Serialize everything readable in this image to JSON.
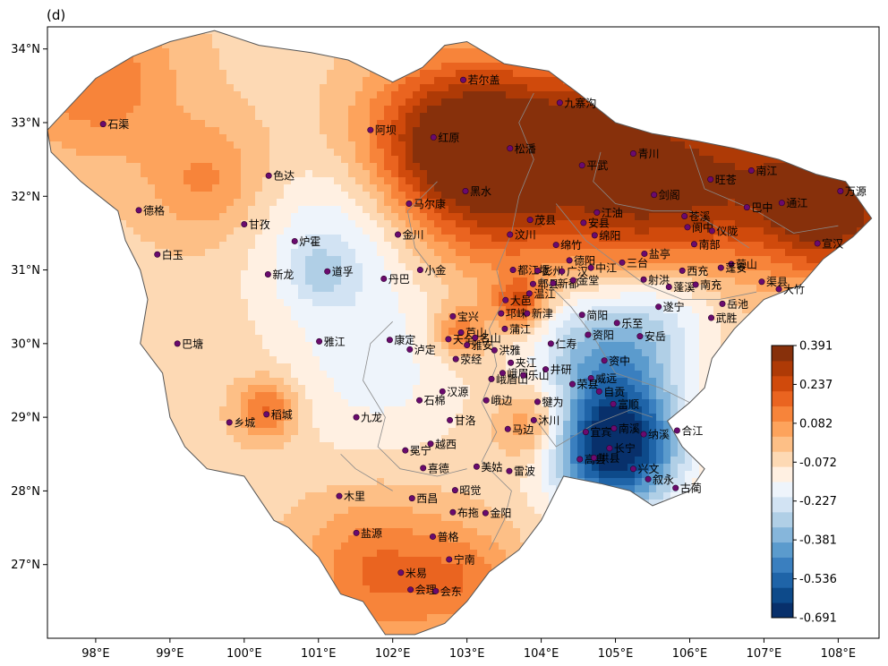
{
  "panel_label": "(d)",
  "axes": {
    "lon_range": [
      97.35,
      108.55
    ],
    "lat_range": [
      26.0,
      34.3
    ],
    "x_ticks": [
      {
        "value": 98,
        "label": "98°E"
      },
      {
        "value": 99,
        "label": "99°E"
      },
      {
        "value": 100,
        "label": "100°E"
      },
      {
        "value": 101,
        "label": "101°E"
      },
      {
        "value": 102,
        "label": "102°E"
      },
      {
        "value": 103,
        "label": "103°E"
      },
      {
        "value": 104,
        "label": "104°E"
      },
      {
        "value": 105,
        "label": "105°E"
      },
      {
        "value": 106,
        "label": "106°E"
      },
      {
        "value": 107,
        "label": "107°E"
      },
      {
        "value": 108,
        "label": "108°E"
      }
    ],
    "y_ticks": [
      {
        "value": 27,
        "label": "27°N"
      },
      {
        "value": 28,
        "label": "28°N"
      },
      {
        "value": 29,
        "label": "29°N"
      },
      {
        "value": 30,
        "label": "30°N"
      },
      {
        "value": 31,
        "label": "31°N"
      },
      {
        "value": 32,
        "label": "32°N"
      },
      {
        "value": 33,
        "label": "33°N"
      },
      {
        "value": 34,
        "label": "34°N"
      }
    ]
  },
  "colorbar": {
    "min": -0.691,
    "max": 0.391,
    "tick_labels": [
      "0.391",
      "0.237",
      "0.082",
      "-0.072",
      "-0.227",
      "-0.381",
      "-0.536",
      "-0.691"
    ],
    "colors": [
      "#08306b",
      "#0d4a8a",
      "#1f64a8",
      "#3a7fbf",
      "#5b9bcd",
      "#86b6db",
      "#b0cfe6",
      "#d2e3f3",
      "#eef4fb",
      "#fff0e2",
      "#fdd9b4",
      "#fdbf86",
      "#fda35c",
      "#f7843a",
      "#ea6420",
      "#d04a0c",
      "#ae3a06",
      "#87300b"
    ]
  },
  "field_base_value": -0.05,
  "field_anomalies": [
    {
      "lon": 103.5,
      "lat": 32.5,
      "value": 0.44,
      "radius": 1.3
    },
    {
      "lon": 104.9,
      "lat": 32.8,
      "value": 0.2,
      "radius": 0.9
    },
    {
      "lon": 106.3,
      "lat": 32.25,
      "value": 0.3,
      "radius": 1.2
    },
    {
      "lon": 107.9,
      "lat": 31.9,
      "value": 0.44,
      "radius": 0.9
    },
    {
      "lon": 105.2,
      "lat": 31.6,
      "value": 0.1,
      "radius": 0.9
    },
    {
      "lon": 102.5,
      "lat": 32.8,
      "value": 0.16,
      "radius": 1.0
    },
    {
      "lon": 98.0,
      "lat": 33.6,
      "value": 0.14,
      "radius": 1.1
    },
    {
      "lon": 99.5,
      "lat": 32.2,
      "value": 0.1,
      "radius": 0.8
    },
    {
      "lon": 101.2,
      "lat": 31.3,
      "value": -0.22,
      "radius": 1.1
    },
    {
      "lon": 101.0,
      "lat": 30.95,
      "value": -0.16,
      "radius": 0.35
    },
    {
      "lon": 101.8,
      "lat": 29.6,
      "value": -0.17,
      "radius": 1.2
    },
    {
      "lon": 100.3,
      "lat": 29.1,
      "value": 0.18,
      "radius": 0.4
    },
    {
      "lon": 103.7,
      "lat": 30.55,
      "value": 0.22,
      "radius": 0.35
    },
    {
      "lon": 102.9,
      "lat": 30.15,
      "value": 0.16,
      "radius": 0.35
    },
    {
      "lon": 103.9,
      "lat": 28.9,
      "value": 0.15,
      "radius": 0.5
    },
    {
      "lon": 101.8,
      "lat": 26.9,
      "value": 0.16,
      "radius": 1.0
    },
    {
      "lon": 103.0,
      "lat": 26.8,
      "value": 0.1,
      "radius": 0.7
    },
    {
      "lon": 105.0,
      "lat": 28.6,
      "value": -0.72,
      "radius": 0.85
    },
    {
      "lon": 105.0,
      "lat": 29.9,
      "value": -0.35,
      "radius": 0.9
    },
    {
      "lon": 105.8,
      "lat": 30.5,
      "value": -0.15,
      "radius": 0.7
    },
    {
      "lon": 104.2,
      "lat": 30.0,
      "value": -0.1,
      "radius": 0.7
    }
  ],
  "boundary": [
    [
      97.35,
      32.9
    ],
    [
      98.0,
      33.6
    ],
    [
      98.5,
      33.9
    ],
    [
      99.0,
      34.1
    ],
    [
      99.6,
      34.25
    ],
    [
      100.2,
      34.05
    ],
    [
      100.9,
      33.95
    ],
    [
      101.4,
      33.85
    ],
    [
      102.0,
      33.55
    ],
    [
      102.4,
      33.75
    ],
    [
      102.7,
      34.05
    ],
    [
      103.0,
      34.1
    ],
    [
      103.5,
      33.8
    ],
    [
      104.1,
      33.7
    ],
    [
      104.5,
      33.4
    ],
    [
      105.0,
      33.0
    ],
    [
      105.5,
      32.85
    ],
    [
      106.1,
      32.75
    ],
    [
      106.6,
      32.65
    ],
    [
      107.2,
      32.5
    ],
    [
      107.7,
      32.3
    ],
    [
      108.1,
      32.2
    ],
    [
      108.45,
      31.7
    ],
    [
      108.2,
      31.45
    ],
    [
      107.8,
      31.15
    ],
    [
      107.5,
      30.8
    ],
    [
      107.0,
      30.6
    ],
    [
      106.6,
      30.2
    ],
    [
      106.3,
      29.8
    ],
    [
      106.2,
      29.4
    ],
    [
      106.0,
      29.2
    ],
    [
      105.7,
      28.95
    ],
    [
      105.9,
      28.6
    ],
    [
      106.2,
      28.3
    ],
    [
      106.0,
      28.0
    ],
    [
      105.5,
      27.8
    ],
    [
      105.2,
      28.0
    ],
    [
      104.8,
      28.1
    ],
    [
      104.3,
      28.2
    ],
    [
      104.0,
      27.6
    ],
    [
      103.7,
      27.2
    ],
    [
      103.3,
      26.9
    ],
    [
      103.0,
      26.5
    ],
    [
      102.7,
      26.2
    ],
    [
      102.3,
      26.05
    ],
    [
      101.9,
      26.05
    ],
    [
      101.6,
      26.5
    ],
    [
      101.3,
      26.6
    ],
    [
      101.0,
      27.1
    ],
    [
      100.6,
      27.5
    ],
    [
      100.4,
      27.6
    ],
    [
      100.2,
      27.9
    ],
    [
      100.0,
      28.2
    ],
    [
      99.5,
      28.3
    ],
    [
      99.2,
      28.6
    ],
    [
      99.0,
      29.0
    ],
    [
      98.9,
      29.6
    ],
    [
      98.6,
      30.0
    ],
    [
      98.7,
      30.6
    ],
    [
      98.6,
      31.0
    ],
    [
      98.4,
      31.4
    ],
    [
      98.3,
      31.8
    ],
    [
      97.8,
      32.2
    ],
    [
      97.4,
      32.6
    ]
  ],
  "inner_borders": [
    [
      [
        103.9,
        33.4
      ],
      [
        103.7,
        33.0
      ],
      [
        103.9,
        32.5
      ],
      [
        103.7,
        32.0
      ],
      [
        103.6,
        31.5
      ],
      [
        103.4,
        31.0
      ],
      [
        103.5,
        30.6
      ],
      [
        103.3,
        30.2
      ],
      [
        103.4,
        29.7
      ],
      [
        103.2,
        29.2
      ],
      [
        103.4,
        28.8
      ],
      [
        103.2,
        28.4
      ],
      [
        103.6,
        28.0
      ],
      [
        103.5,
        27.6
      ],
      [
        103.3,
        27.2
      ]
    ],
    [
      [
        104.2,
        31.9
      ],
      [
        104.6,
        31.4
      ],
      [
        105.0,
        31.1
      ],
      [
        105.4,
        30.8
      ],
      [
        105.9,
        30.6
      ],
      [
        106.4,
        30.6
      ],
      [
        106.9,
        30.7
      ]
    ],
    [
      [
        104.0,
        30.9
      ],
      [
        104.4,
        30.5
      ],
      [
        104.7,
        30.1
      ],
      [
        105.0,
        29.6
      ],
      [
        105.6,
        29.4
      ],
      [
        106.0,
        29.2
      ]
    ],
    [
      [
        104.8,
        32.6
      ],
      [
        104.7,
        32.2
      ],
      [
        105.0,
        31.9
      ],
      [
        105.5,
        31.8
      ],
      [
        106.0,
        31.8
      ],
      [
        106.5,
        31.5
      ],
      [
        106.8,
        31.3
      ]
    ],
    [
      [
        106.0,
        32.7
      ],
      [
        106.2,
        32.1
      ],
      [
        106.9,
        31.8
      ],
      [
        107.4,
        31.5
      ],
      [
        108.0,
        31.6
      ]
    ],
    [
      [
        102.0,
        30.3
      ],
      [
        101.7,
        30.0
      ],
      [
        101.6,
        29.5
      ],
      [
        101.9,
        29.0
      ],
      [
        101.8,
        28.6
      ],
      [
        102.1,
        28.3
      ],
      [
        102.6,
        28.2
      ],
      [
        103.0,
        28.3
      ]
    ],
    [
      [
        101.3,
        28.5
      ],
      [
        101.5,
        28.3
      ],
      [
        102.0,
        28.0
      ]
    ],
    [
      [
        102.6,
        30.9
      ],
      [
        102.3,
        31.3
      ],
      [
        102.2,
        31.8
      ],
      [
        102.6,
        32.2
      ]
    ],
    [
      [
        103.9,
        29.0
      ],
      [
        104.2,
        28.6
      ],
      [
        104.7,
        28.9
      ],
      [
        105.2,
        29.1
      ],
      [
        105.5,
        29.0
      ]
    ]
  ],
  "stations": [
    {
      "name": "若尔盖",
      "lon": 102.95,
      "lat": 33.58
    },
    {
      "name": "九寨沟",
      "lon": 104.25,
      "lat": 33.27
    },
    {
      "name": "石渠",
      "lon": 98.1,
      "lat": 32.98
    },
    {
      "name": "阿坝",
      "lon": 101.7,
      "lat": 32.9
    },
    {
      "name": "红原",
      "lon": 102.55,
      "lat": 32.8
    },
    {
      "name": "松潘",
      "lon": 103.58,
      "lat": 32.65
    },
    {
      "name": "平武",
      "lon": 104.55,
      "lat": 32.42
    },
    {
      "name": "青川",
      "lon": 105.24,
      "lat": 32.58
    },
    {
      "name": "色达",
      "lon": 100.33,
      "lat": 32.28
    },
    {
      "name": "黑水",
      "lon": 102.98,
      "lat": 32.07
    },
    {
      "name": "旺苍",
      "lon": 106.28,
      "lat": 32.23
    },
    {
      "name": "南江",
      "lon": 106.83,
      "lat": 32.35
    },
    {
      "name": "万源",
      "lon": 108.03,
      "lat": 32.07
    },
    {
      "name": "马尔康",
      "lon": 102.22,
      "lat": 31.9
    },
    {
      "name": "剑阁",
      "lon": 105.52,
      "lat": 32.02
    },
    {
      "name": "江油",
      "lon": 104.75,
      "lat": 31.78
    },
    {
      "name": "德格",
      "lon": 98.58,
      "lat": 31.81
    },
    {
      "name": "茂县",
      "lon": 103.85,
      "lat": 31.68
    },
    {
      "name": "安县",
      "lon": 104.57,
      "lat": 31.64
    },
    {
      "name": "苍溪",
      "lon": 105.93,
      "lat": 31.73
    },
    {
      "name": "巴中",
      "lon": 106.77,
      "lat": 31.85
    },
    {
      "name": "通江",
      "lon": 107.24,
      "lat": 31.91
    },
    {
      "name": "阆中",
      "lon": 105.97,
      "lat": 31.58
    },
    {
      "name": "仪陇",
      "lon": 106.3,
      "lat": 31.53
    },
    {
      "name": "甘孜",
      "lon": 100.0,
      "lat": 31.62
    },
    {
      "name": "汶川",
      "lon": 103.58,
      "lat": 31.48
    },
    {
      "name": "绵竹",
      "lon": 104.2,
      "lat": 31.34
    },
    {
      "name": "绵阳",
      "lon": 104.72,
      "lat": 31.47
    },
    {
      "name": "金川",
      "lon": 102.07,
      "lat": 31.48
    },
    {
      "name": "炉霍",
      "lon": 100.68,
      "lat": 31.39
    },
    {
      "name": "宣汉",
      "lon": 107.72,
      "lat": 31.36
    },
    {
      "name": "盐亭",
      "lon": 105.39,
      "lat": 31.22
    },
    {
      "name": "南部",
      "lon": 106.06,
      "lat": 31.35
    },
    {
      "name": "营山",
      "lon": 106.56,
      "lat": 31.08
    },
    {
      "name": "三台",
      "lon": 105.09,
      "lat": 31.1
    },
    {
      "name": "德阳",
      "lon": 104.38,
      "lat": 31.13
    },
    {
      "name": "白玉",
      "lon": 98.83,
      "lat": 31.21
    },
    {
      "name": "都江堰",
      "lon": 103.62,
      "lat": 31.0
    },
    {
      "name": "彭州",
      "lon": 103.95,
      "lat": 30.99
    },
    {
      "name": "广汉",
      "lon": 104.28,
      "lat": 30.98
    },
    {
      "name": "中江",
      "lon": 104.67,
      "lat": 31.03
    },
    {
      "name": "西充",
      "lon": 105.9,
      "lat": 30.99
    },
    {
      "name": "蓬安",
      "lon": 106.42,
      "lat": 31.03
    },
    {
      "name": "渠县",
      "lon": 106.97,
      "lat": 30.84
    },
    {
      "name": "小金",
      "lon": 102.37,
      "lat": 31.0
    },
    {
      "name": "道孚",
      "lon": 101.12,
      "lat": 30.98
    },
    {
      "name": "新龙",
      "lon": 100.32,
      "lat": 30.94
    },
    {
      "name": "丹巴",
      "lon": 101.88,
      "lat": 30.88
    },
    {
      "name": "郫县",
      "lon": 103.89,
      "lat": 30.81
    },
    {
      "name": "射洪",
      "lon": 105.38,
      "lat": 30.87
    },
    {
      "name": "蓬溪",
      "lon": 105.72,
      "lat": 30.77
    },
    {
      "name": "南充",
      "lon": 106.08,
      "lat": 30.8
    },
    {
      "name": "大竹",
      "lon": 107.2,
      "lat": 30.74
    },
    {
      "name": "大邑",
      "lon": 103.52,
      "lat": 30.59
    },
    {
      "name": "温江",
      "lon": 103.84,
      "lat": 30.68
    },
    {
      "name": "新都",
      "lon": 104.16,
      "lat": 30.82
    },
    {
      "name": "金堂",
      "lon": 104.43,
      "lat": 30.86
    },
    {
      "name": "岳池",
      "lon": 106.44,
      "lat": 30.54
    },
    {
      "name": "宝兴",
      "lon": 102.81,
      "lat": 30.37
    },
    {
      "name": "邛崃",
      "lon": 103.46,
      "lat": 30.41
    },
    {
      "name": "遂宁",
      "lon": 105.58,
      "lat": 30.5
    },
    {
      "name": "武胜",
      "lon": 106.29,
      "lat": 30.35
    },
    {
      "name": "芦山",
      "lon": 102.92,
      "lat": 30.15
    },
    {
      "name": "新津",
      "lon": 103.81,
      "lat": 30.41
    },
    {
      "name": "简阳",
      "lon": 104.55,
      "lat": 30.39
    },
    {
      "name": "乐至",
      "lon": 105.02,
      "lat": 30.28
    },
    {
      "name": "天全",
      "lon": 102.75,
      "lat": 30.06
    },
    {
      "name": "名山",
      "lon": 103.11,
      "lat": 30.08
    },
    {
      "name": "蒲江",
      "lon": 103.51,
      "lat": 30.2
    },
    {
      "name": "安岳",
      "lon": 105.33,
      "lat": 30.1
    },
    {
      "name": "康定",
      "lon": 101.96,
      "lat": 30.05
    },
    {
      "name": "雅江",
      "lon": 101.01,
      "lat": 30.03
    },
    {
      "name": "巴塘",
      "lon": 99.1,
      "lat": 30.0
    },
    {
      "name": "仁寿",
      "lon": 104.13,
      "lat": 30.0
    },
    {
      "name": "资阳",
      "lon": 104.63,
      "lat": 30.12
    },
    {
      "name": "雅安",
      "lon": 103.0,
      "lat": 29.98
    },
    {
      "name": "洪雅",
      "lon": 103.37,
      "lat": 29.91
    },
    {
      "name": "泸定",
      "lon": 102.23,
      "lat": 29.92
    },
    {
      "name": "荥经",
      "lon": 102.85,
      "lat": 29.79
    },
    {
      "name": "夹江",
      "lon": 103.59,
      "lat": 29.74
    },
    {
      "name": "资中",
      "lon": 104.85,
      "lat": 29.77
    },
    {
      "name": "峨眉山",
      "lon": 103.33,
      "lat": 29.52
    },
    {
      "name": "峨眉",
      "lon": 103.48,
      "lat": 29.6
    },
    {
      "name": "井研",
      "lon": 104.06,
      "lat": 29.65
    },
    {
      "name": "威远",
      "lon": 104.67,
      "lat": 29.53
    },
    {
      "name": "汉源",
      "lon": 102.67,
      "lat": 29.35
    },
    {
      "name": "乐山",
      "lon": 103.76,
      "lat": 29.57
    },
    {
      "name": "荣县",
      "lon": 104.42,
      "lat": 29.45
    },
    {
      "name": "自贡",
      "lon": 104.78,
      "lat": 29.35
    },
    {
      "name": "石棉",
      "lon": 102.36,
      "lat": 29.23
    },
    {
      "name": "峨边",
      "lon": 103.26,
      "lat": 29.23
    },
    {
      "name": "犍为",
      "lon": 103.95,
      "lat": 29.21
    },
    {
      "name": "富顺",
      "lon": 104.97,
      "lat": 29.18
    },
    {
      "name": "稻城",
      "lon": 100.3,
      "lat": 29.04
    },
    {
      "name": "乡城",
      "lon": 99.8,
      "lat": 28.93
    },
    {
      "name": "九龙",
      "lon": 101.51,
      "lat": 29.0
    },
    {
      "name": "甘洛",
      "lon": 102.77,
      "lat": 28.96
    },
    {
      "name": "沐川",
      "lon": 103.9,
      "lat": 28.96
    },
    {
      "name": "马边",
      "lon": 103.55,
      "lat": 28.84
    },
    {
      "name": "宜宾",
      "lon": 104.6,
      "lat": 28.8
    },
    {
      "name": "南溪",
      "lon": 104.98,
      "lat": 28.85
    },
    {
      "name": "纳溪",
      "lon": 105.38,
      "lat": 28.77
    },
    {
      "name": "合江",
      "lon": 105.83,
      "lat": 28.82
    },
    {
      "name": "冕宁",
      "lon": 102.17,
      "lat": 28.55
    },
    {
      "name": "越西",
      "lon": 102.51,
      "lat": 28.64
    },
    {
      "name": "长宁",
      "lon": 104.92,
      "lat": 28.58
    },
    {
      "name": "高县",
      "lon": 104.52,
      "lat": 28.43
    },
    {
      "name": "兴文",
      "lon": 105.24,
      "lat": 28.3
    },
    {
      "name": "美姑",
      "lon": 103.13,
      "lat": 28.33
    },
    {
      "name": "喜德",
      "lon": 102.41,
      "lat": 28.31
    },
    {
      "name": "雷波",
      "lon": 103.57,
      "lat": 28.27
    },
    {
      "name": "珙县",
      "lon": 104.71,
      "lat": 28.45
    },
    {
      "name": "叙永",
      "lon": 105.44,
      "lat": 28.16
    },
    {
      "name": "古蔺",
      "lon": 105.81,
      "lat": 28.04
    },
    {
      "name": "昭觉",
      "lon": 102.84,
      "lat": 28.01
    },
    {
      "name": "木里",
      "lon": 101.28,
      "lat": 27.93
    },
    {
      "name": "西昌",
      "lon": 102.26,
      "lat": 27.9
    },
    {
      "name": "布拖",
      "lon": 102.81,
      "lat": 27.71
    },
    {
      "name": "金阳",
      "lon": 103.25,
      "lat": 27.7
    },
    {
      "name": "盐源",
      "lon": 101.51,
      "lat": 27.43
    },
    {
      "name": "普格",
      "lon": 102.54,
      "lat": 27.38
    },
    {
      "name": "宁南",
      "lon": 102.76,
      "lat": 27.07
    },
    {
      "name": "米易",
      "lon": 102.11,
      "lat": 26.89
    },
    {
      "name": "会理",
      "lon": 102.24,
      "lat": 26.66
    },
    {
      "name": "会东",
      "lon": 102.58,
      "lat": 26.64
    }
  ]
}
